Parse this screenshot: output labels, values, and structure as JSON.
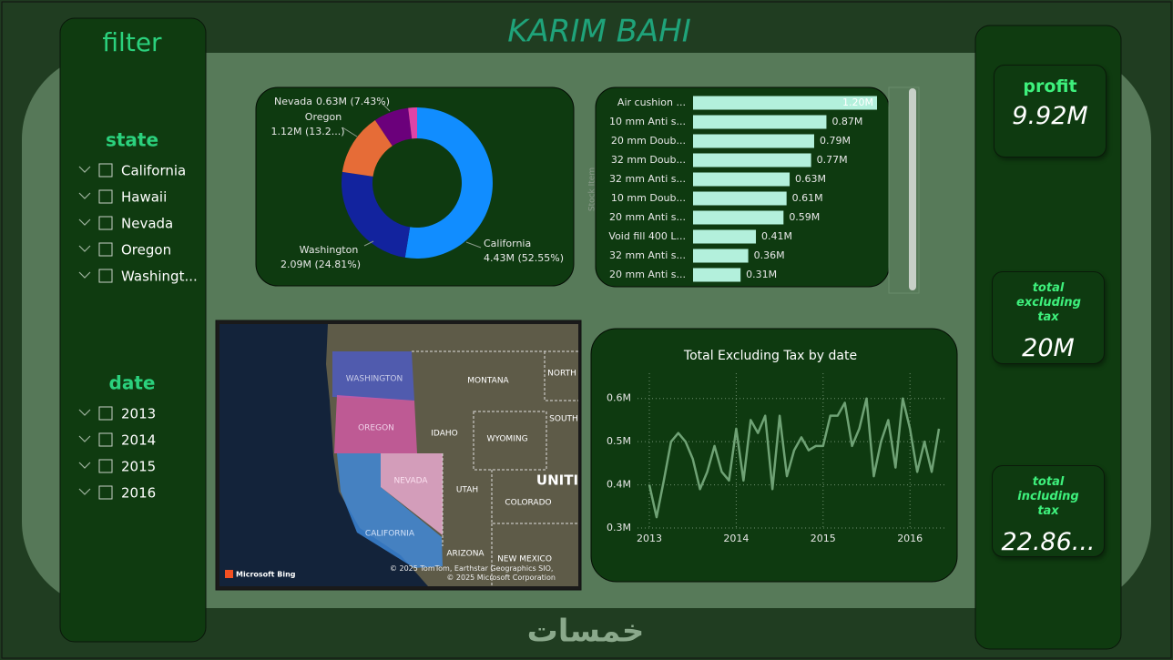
{
  "header": {
    "title": "KARIM BAHI"
  },
  "filter": {
    "title": "filter",
    "state": {
      "title": "state",
      "items": [
        "California",
        "Hawaii",
        "Nevada",
        "Oregon",
        "Washingt..."
      ]
    },
    "date": {
      "title": "date",
      "items": [
        "2013",
        "2014",
        "2015",
        "2016"
      ]
    }
  },
  "kpis": [
    {
      "title": "profit",
      "value": "9.92M"
    },
    {
      "title": "total excluding tax",
      "value": "20M"
    },
    {
      "title": "total including tax",
      "value": "22.86..."
    }
  ],
  "chart_data": [
    {
      "type": "donut",
      "categories": [
        "California",
        "Washington",
        "Oregon",
        "Nevada",
        null
      ],
      "values": [
        4.43,
        2.09,
        1.12,
        0.63,
        0.16
      ],
      "value_labels": [
        "4.43M (52.55%)",
        "2.09M (24.81%)",
        "1.12M (13.2...)",
        "0.63M (7.43%)",
        null
      ],
      "colors": [
        "#118dff",
        "#12239e",
        "#e66c37",
        "#6b007b",
        "#e044a7"
      ]
    },
    {
      "type": "bar",
      "orientation": "horizontal",
      "y_label": "Stock Item",
      "categories": [
        "Air cushion ...",
        "10 mm Anti s...",
        "20 mm Doub...",
        "32 mm Doub...",
        "32 mm Anti s...",
        "10 mm Doub...",
        "20 mm Anti s...",
        "Void fill 400 L...",
        "32 mm Anti s...",
        "20 mm Anti s..."
      ],
      "values": [
        1.2,
        0.87,
        0.79,
        0.77,
        0.63,
        0.61,
        0.59,
        0.41,
        0.36,
        0.31
      ],
      "value_labels": [
        "1.20M",
        "0.87M",
        "0.79M",
        "0.77M",
        "0.63M",
        "0.61M",
        "0.59M",
        "0.41M",
        "0.36M",
        "0.31M"
      ],
      "color": "#b3f0dc",
      "xlim": [
        0,
        1.2
      ]
    },
    {
      "type": "line",
      "title": "Total Excluding Tax by date",
      "color": "#6fa275",
      "grid": true,
      "x": [
        "2013-01",
        "2013-02",
        "2013-03",
        "2013-04",
        "2013-05",
        "2013-06",
        "2013-07",
        "2013-08",
        "2013-09",
        "2013-10",
        "2013-11",
        "2013-12",
        "2014-01",
        "2014-02",
        "2014-03",
        "2014-04",
        "2014-05",
        "2014-06",
        "2014-07",
        "2014-08",
        "2014-09",
        "2014-10",
        "2014-11",
        "2014-12",
        "2015-01",
        "2015-02",
        "2015-03",
        "2015-04",
        "2015-05",
        "2015-06",
        "2015-07",
        "2015-08",
        "2015-09",
        "2015-10",
        "2015-11",
        "2015-12",
        "2016-01",
        "2016-02",
        "2016-03",
        "2016-04",
        "2016-05"
      ],
      "values": [
        0.4,
        0.325,
        0.41,
        0.5,
        0.52,
        0.5,
        0.46,
        0.39,
        0.43,
        0.49,
        0.43,
        0.41,
        0.53,
        0.41,
        0.55,
        0.52,
        0.56,
        0.39,
        0.56,
        0.42,
        0.48,
        0.51,
        0.48,
        0.49,
        0.49,
        0.56,
        0.56,
        0.59,
        0.49,
        0.53,
        0.6,
        0.42,
        0.5,
        0.55,
        0.44,
        0.6,
        0.53,
        0.43,
        0.5,
        0.43,
        0.53
      ],
      "xlim": [
        "2013-01",
        "2016-05"
      ],
      "xticks": [
        "2013",
        "2014",
        "2015",
        "2016"
      ],
      "ylim": [
        0.3,
        0.65
      ],
      "yticks": [
        {
          "value": 0.3,
          "label": "0.3M"
        },
        {
          "value": 0.4,
          "label": "0.4M"
        },
        {
          "value": 0.5,
          "label": "0.5M"
        },
        {
          "value": 0.6,
          "label": "0.6M"
        }
      ]
    }
  ],
  "map": {
    "labels": [
      "WASHINGTON",
      "MONTANA",
      "NORTH",
      "OREGON",
      "IDAHO",
      "SOUTH",
      "WYOMING",
      "NEVADA",
      "UTAH",
      "UNITI",
      "COLORADO",
      "CALIFORNIA",
      "ARIZONA",
      "NEW MEXICO"
    ],
    "attribution": "Microsoft Bing",
    "copyright": "© 2025 TomTom, Earthstar Geographics SIO, © 2025 Microsoft Corporation"
  },
  "watermark": "خمسات"
}
